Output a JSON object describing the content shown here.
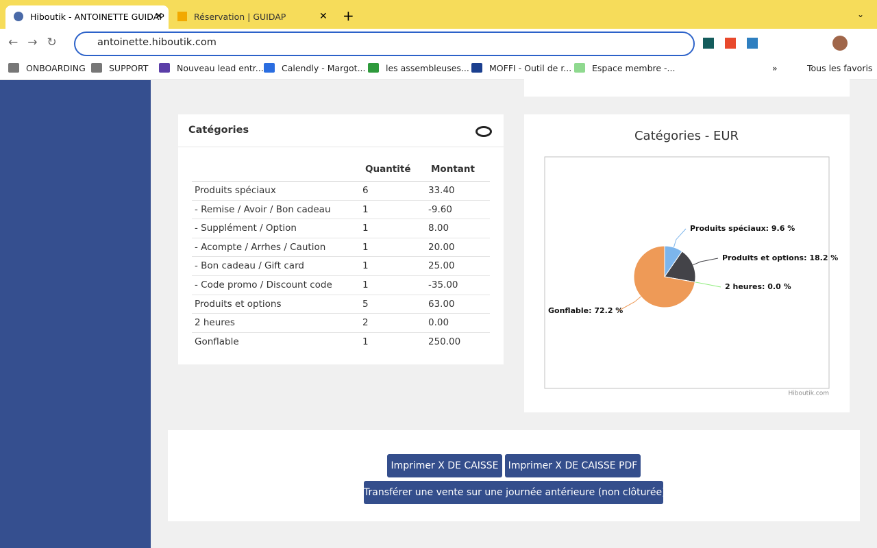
{
  "browser": {
    "tabs": [
      "Hiboutik - ANTOINETTE GUIDAP",
      "Réservation | GUIDAP"
    ],
    "url": "antoinette.hiboutik.com",
    "bookmarks": [
      "ONBOARDING",
      "SUPPORT",
      "Nouveau lead entr...",
      "Calendly - Margot...",
      "les assembleuses...",
      "MOFFI - Outil de r...",
      "Espace membre -..."
    ],
    "more": "»",
    "all_bookmarks": "Tous les favoris"
  },
  "table": {
    "title": "Catégories",
    "headers": [
      "Quantité",
      "Montant"
    ],
    "rows": [
      [
        "Produits spéciaux",
        "6",
        "33.40"
      ],
      [
        "- Remise / Avoir / Bon cadeau",
        "1",
        "-9.60"
      ],
      [
        "- Supplément / Option",
        "1",
        "8.00"
      ],
      [
        "- Acompte / Arrhes / Caution",
        "1",
        "20.00"
      ],
      [
        "- Bon cadeau / Gift card",
        "1",
        "25.00"
      ],
      [
        "- Code promo / Discount code",
        "1",
        "-35.00"
      ],
      [
        "Produits et options",
        "5",
        "63.00"
      ],
      [
        "2 heures",
        "2",
        "0.00"
      ],
      [
        "Gonflable",
        "1",
        "250.00"
      ]
    ]
  },
  "chart_data": {
    "type": "pie",
    "title": "Catégories - EUR",
    "credit": "Hiboutik.com",
    "categories": [
      "Produits spéciaux",
      "Produits et options",
      "2 heures",
      "Gonflable"
    ],
    "values": [
      9.6,
      18.2,
      0.0,
      72.2
    ],
    "value_labels": [
      "Produits spéciaux: 9.6 %",
      "Produits et options: 18.2 %",
      "2 heures: 0.0 %",
      "Gonflable: 72.2 %"
    ],
    "colors": [
      "#7cb5ec",
      "#434348",
      "#90ed7d",
      "#ee9a57"
    ]
  },
  "buttons": [
    "Imprimer X DE CAISSE",
    "Imprimer X DE CAISSE PDF",
    "Transférer une vente sur une journée antérieure (non clôturée)"
  ]
}
